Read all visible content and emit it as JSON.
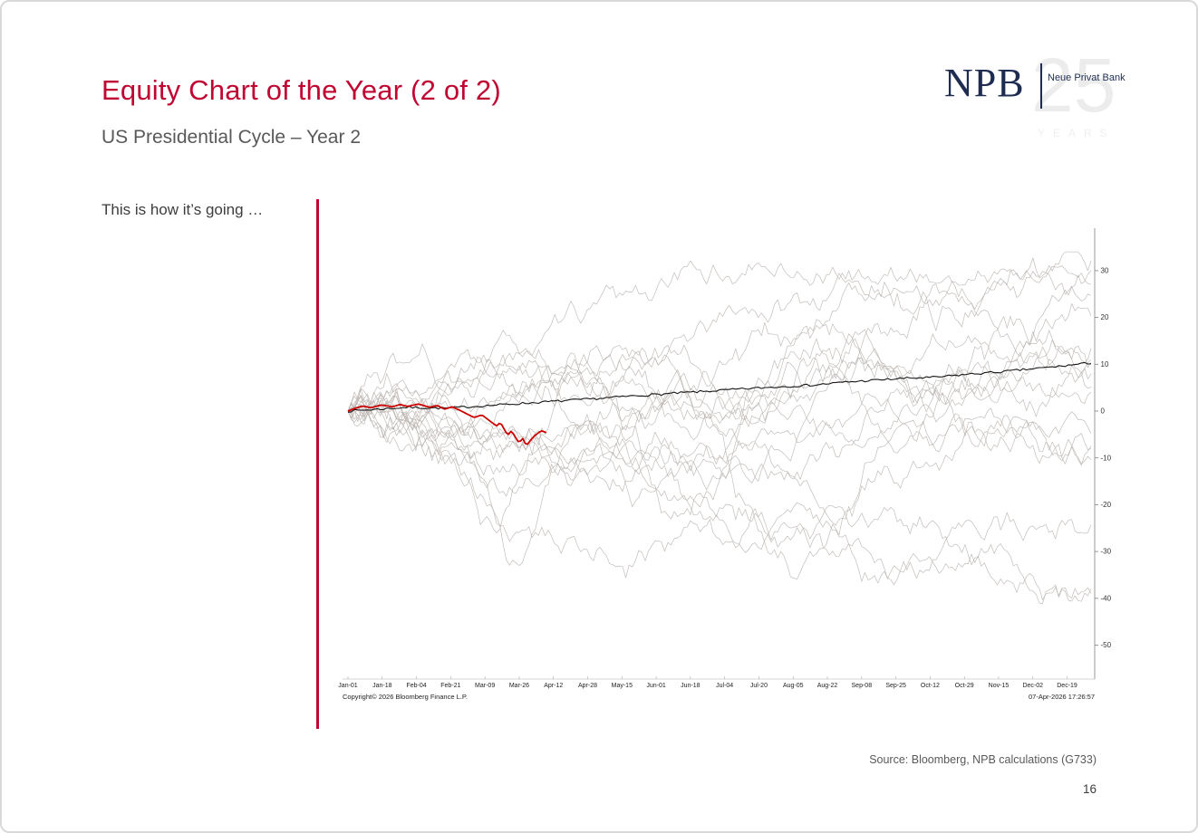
{
  "slide": {
    "title": "Equity Chart of the Year (2 of 2)",
    "subtitle": "US Presidential Cycle – Year 2",
    "annotation": "This is how it’s going …",
    "source": "Source: Bloomberg, NPB calculations (G733)",
    "page_number": "16"
  },
  "logo": {
    "npb": "NPB",
    "bank_name": "Neue Privat Bank",
    "anniversary_number": "25",
    "anniversary_label": "YEARS"
  },
  "colors": {
    "accent": "#C00532",
    "navy": "#1E2C52",
    "gray_line": "#b9b1ad",
    "avg_line": "#151515",
    "current_line": "#cc0000",
    "axis": "#808080"
  },
  "chart_data": {
    "type": "line",
    "title": "",
    "xlabel": "",
    "ylabel": "",
    "ylim": [
      -55,
      36
    ],
    "grid": false,
    "legend": "none",
    "y_axis_side": "right",
    "x_tick_labels": [
      "Jan-01",
      "Jan-18",
      "Feb-04",
      "Feb-21",
      "Mar-09",
      "Mar-26",
      "Apr-12",
      "Apr-28",
      "May-15",
      "Jun-01",
      "Jun-18",
      "Jul-04",
      "Jul-20",
      "Aug-05",
      "Aug-22",
      "Sep-08",
      "Sep-25",
      "Oct-12",
      "Oct-29",
      "Nov-15",
      "Dec-02",
      "Dec-19"
    ],
    "y_ticks": [
      30,
      20,
      10,
      0,
      -10,
      -20,
      -30,
      -40,
      -50
    ],
    "copyright": "Copyright© 2026 Bloomberg Finance L.P.",
    "timestamp": "07-Apr-2026 17:26:57",
    "average_series": {
      "points": [
        [
          0,
          0
        ],
        [
          0.04,
          0.4
        ],
        [
          0.08,
          0.8
        ],
        [
          0.13,
          0.6
        ],
        [
          0.17,
          1.0
        ],
        [
          0.21,
          1.4
        ],
        [
          0.25,
          1.8
        ],
        [
          0.29,
          2.2
        ],
        [
          0.33,
          2.6
        ],
        [
          0.38,
          3.2
        ],
        [
          0.42,
          3.6
        ],
        [
          0.46,
          4.0
        ],
        [
          0.5,
          4.4
        ],
        [
          0.54,
          4.8
        ],
        [
          0.58,
          5.2
        ],
        [
          0.63,
          5.6
        ],
        [
          0.67,
          6.2
        ],
        [
          0.71,
          6.6
        ],
        [
          0.75,
          7.0
        ],
        [
          0.79,
          7.2
        ],
        [
          0.83,
          7.8
        ],
        [
          0.88,
          8.4
        ],
        [
          0.92,
          9.0
        ],
        [
          0.96,
          9.6
        ],
        [
          1.0,
          10.3
        ]
      ]
    },
    "current_series": {
      "points": [
        [
          0,
          0
        ],
        [
          0.01,
          0.6
        ],
        [
          0.02,
          1.1
        ],
        [
          0.03,
          0.7
        ],
        [
          0.045,
          1.3
        ],
        [
          0.06,
          0.9
        ],
        [
          0.07,
          1.4
        ],
        [
          0.08,
          1.0
        ],
        [
          0.095,
          1.5
        ],
        [
          0.11,
          0.8
        ],
        [
          0.12,
          1.2
        ],
        [
          0.13,
          0.4
        ],
        [
          0.14,
          0.9
        ],
        [
          0.15,
          0.2
        ],
        [
          0.16,
          -0.6
        ],
        [
          0.17,
          -1.4
        ],
        [
          0.18,
          -0.8
        ],
        [
          0.19,
          -2.0
        ],
        [
          0.2,
          -3.2
        ],
        [
          0.205,
          -2.4
        ],
        [
          0.21,
          -3.8
        ],
        [
          0.215,
          -5.2
        ],
        [
          0.22,
          -4.2
        ],
        [
          0.23,
          -6.8
        ],
        [
          0.235,
          -5.8
        ],
        [
          0.24,
          -7.4
        ],
        [
          0.25,
          -5.4
        ],
        [
          0.26,
          -4.2
        ],
        [
          0.267,
          -4.6
        ]
      ]
    },
    "historical_series": [
      {
        "seed": 11,
        "end": 32,
        "dip": null,
        "dip_pos": 0,
        "dip_w": 0,
        "vol": 5
      },
      {
        "seed": 22,
        "end": 30,
        "dip": -4,
        "dip_pos": 0.12,
        "dip_w": 0.05,
        "vol": 6
      },
      {
        "seed": 33,
        "end": 27,
        "dip": null,
        "dip_pos": 0,
        "dip_w": 0,
        "vol": 5
      },
      {
        "seed": 44,
        "end": 25,
        "dip": -6,
        "dip_pos": 0.18,
        "dip_w": 0.06,
        "vol": 7
      },
      {
        "seed": 55,
        "end": 20,
        "dip": -10,
        "dip_pos": 0.3,
        "dip_w": 0.06,
        "vol": 6
      },
      {
        "seed": 66,
        "end": 13,
        "dip": null,
        "dip_pos": 0,
        "dip_w": 0,
        "vol": 5
      },
      {
        "seed": 77,
        "end": 11,
        "dip": -8,
        "dip_pos": 0.2,
        "dip_w": 0.05,
        "vol": 6
      },
      {
        "seed": 88,
        "end": 10,
        "dip": -26,
        "dip_pos": 0.2,
        "dip_w": 0.04,
        "vol": 7
      },
      {
        "seed": 99,
        "end": 8,
        "dip": -33,
        "dip_pos": 0.23,
        "dip_w": 0.035,
        "vol": 6
      },
      {
        "seed": 101,
        "end": 5,
        "dip": -12,
        "dip_pos": 0.5,
        "dip_w": 0.07,
        "vol": 6
      },
      {
        "seed": 112,
        "end": 4,
        "dip": null,
        "dip_pos": 0,
        "dip_w": 0,
        "vol": 5
      },
      {
        "seed": 123,
        "end": -5,
        "dip": -14,
        "dip_pos": 0.6,
        "dip_w": 0.07,
        "vol": 6
      },
      {
        "seed": 134,
        "end": -7,
        "dip": -22,
        "dip_pos": 0.45,
        "dip_w": 0.06,
        "vol": 6
      },
      {
        "seed": 145,
        "end": -8,
        "dip": -30,
        "dip_pos": 0.62,
        "dip_w": 0.08,
        "vol": 7
      },
      {
        "seed": 156,
        "end": -10,
        "dip": null,
        "dip_pos": 0,
        "dip_w": 0,
        "vol": 5
      },
      {
        "seed": 167,
        "end": -23,
        "dip": -27,
        "dip_pos": 0.85,
        "dip_w": 0.09,
        "vol": 6
      },
      {
        "seed": 178,
        "end": -38,
        "dip": -41,
        "dip_pos": 0.93,
        "dip_w": 0.1,
        "vol": 6
      },
      {
        "seed": 189,
        "end": -39,
        "dip": -33,
        "dip_pos": 0.75,
        "dip_w": 0.1,
        "vol": 5
      }
    ]
  }
}
